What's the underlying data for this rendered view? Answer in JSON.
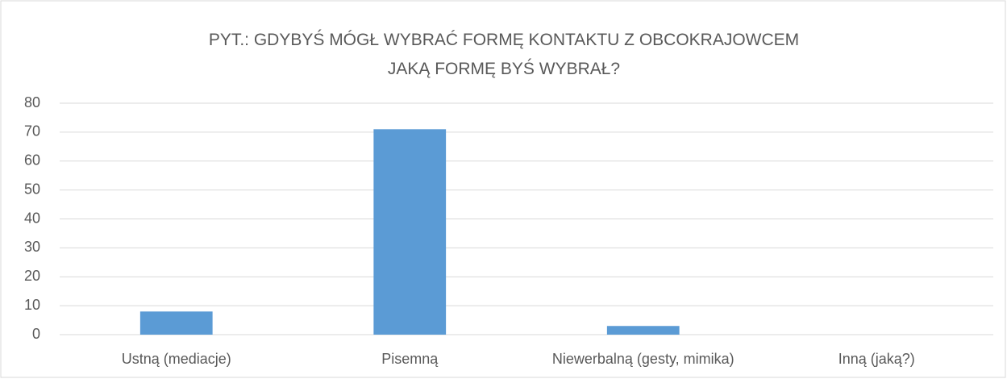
{
  "chart_data": {
    "type": "bar",
    "title": "PYT.: GDYBYŚ MÓGŁ WYBRAĆ FORMĘ KONTAKTU Z OBCOKRAJOWCEM JAKĄ FORMĘ BYŚ WYBRAŁ?",
    "categories": [
      "Ustną (mediacje)",
      "Pisemną",
      "Niewerbalną (gesty, mimika)",
      "Inną (jaką?)"
    ],
    "values": [
      8,
      71,
      3,
      0
    ],
    "color": "#5b9bd5",
    "ylim": [
      0,
      80
    ],
    "yticks": [
      0,
      10,
      20,
      30,
      40,
      50,
      60,
      70,
      80
    ],
    "grid": true
  }
}
